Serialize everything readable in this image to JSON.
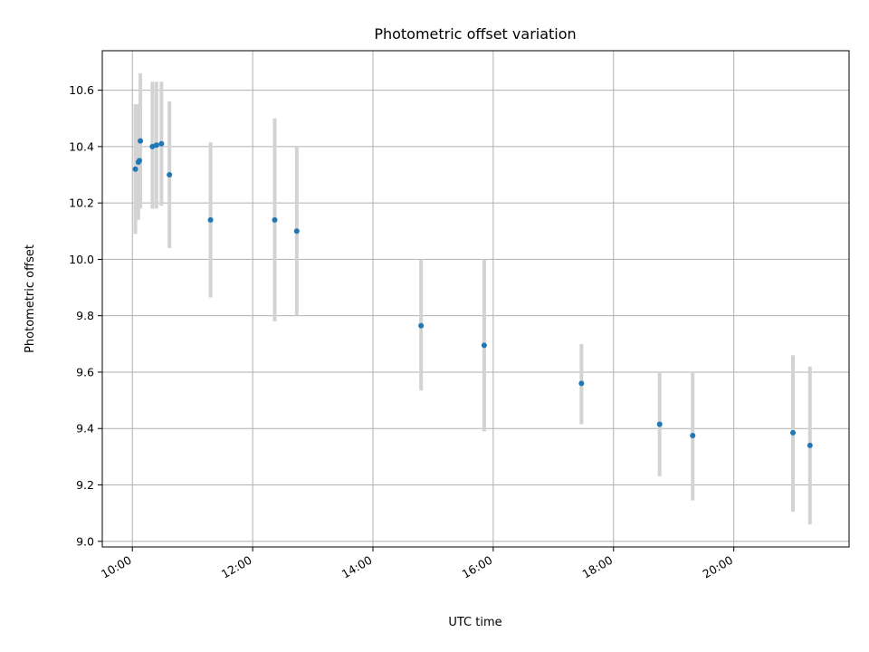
{
  "chart_data": {
    "type": "scatter",
    "title": "Photometric offset variation",
    "xlabel": "UTC time",
    "ylabel": "Photometric offset",
    "xlim": [
      "09:30",
      "21:55"
    ],
    "ylim": [
      8.98,
      10.74
    ],
    "grid": true,
    "x_ticks": [
      "10:00",
      "12:00",
      "14:00",
      "16:00",
      "18:00",
      "20:00"
    ],
    "y_ticks": [
      "9.0",
      "9.2",
      "9.4",
      "9.6",
      "9.8",
      "10.0",
      "10.2",
      "10.4",
      "10.6"
    ],
    "point_color": "#1f77b4",
    "errorbar_color": "#d3d3d3",
    "points": [
      {
        "x": "10:03",
        "y": 10.32,
        "low": 10.09,
        "high": 10.55
      },
      {
        "x": "10:06",
        "y": 10.345,
        "low": 10.14,
        "high": 10.55
      },
      {
        "x": "10:07",
        "y": 10.35,
        "low": 10.19,
        "high": 10.51
      },
      {
        "x": "10:08",
        "y": 10.42,
        "low": 10.18,
        "high": 10.66
      },
      {
        "x": "10:20",
        "y": 10.4,
        "low": 10.18,
        "high": 10.63
      },
      {
        "x": "10:24",
        "y": 10.405,
        "low": 10.18,
        "high": 10.63
      },
      {
        "x": "10:29",
        "y": 10.41,
        "low": 10.19,
        "high": 10.63
      },
      {
        "x": "10:37",
        "y": 10.3,
        "low": 10.04,
        "high": 10.56
      },
      {
        "x": "11:18",
        "y": 10.14,
        "low": 9.865,
        "high": 10.415
      },
      {
        "x": "12:22",
        "y": 10.14,
        "low": 9.78,
        "high": 10.5
      },
      {
        "x": "12:44",
        "y": 10.1,
        "low": 9.8,
        "high": 10.4
      },
      {
        "x": "14:48",
        "y": 9.765,
        "low": 9.535,
        "high": 10.0
      },
      {
        "x": "15:51",
        "y": 9.695,
        "low": 9.39,
        "high": 10.0
      },
      {
        "x": "17:28",
        "y": 9.56,
        "low": 9.415,
        "high": 9.7
      },
      {
        "x": "18:46",
        "y": 9.415,
        "low": 9.23,
        "high": 9.6
      },
      {
        "x": "19:19",
        "y": 9.375,
        "low": 9.145,
        "high": 9.6
      },
      {
        "x": "20:59",
        "y": 9.385,
        "low": 9.105,
        "high": 9.66
      },
      {
        "x": "21:16",
        "y": 9.34,
        "low": 9.06,
        "high": 9.62
      }
    ]
  }
}
